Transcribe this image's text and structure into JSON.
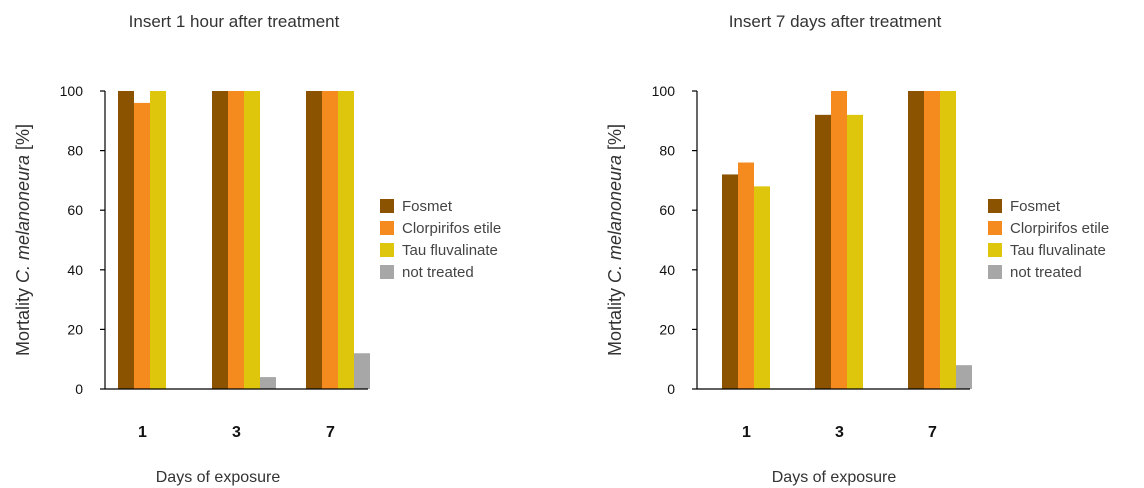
{
  "colors": {
    "Fosmet": "#8B5300",
    "Clorpirifos etile": "#F58A1F",
    "Tau fluvalinate": "#DEC60C",
    "not treated": "#A7A7A7"
  },
  "chart_data": [
    {
      "type": "bar",
      "title": "Insert 1 hour after treatment",
      "xlabel": "Days of exposure",
      "ylabel_prefix": "Mortality ",
      "ylabel_italic": "C. melanoneura",
      "ylabel_suffix": " [%]",
      "ylim": [
        0,
        100
      ],
      "yticks": [
        "0",
        "20",
        "40",
        "60",
        "80",
        "100"
      ],
      "categories": [
        "1",
        "3",
        "7"
      ],
      "legend_position": "right",
      "series": [
        {
          "name": "Fosmet",
          "values": [
            100,
            100,
            100
          ]
        },
        {
          "name": "Clorpirifos etile",
          "values": [
            96,
            100,
            100
          ]
        },
        {
          "name": "Tau fluvalinate",
          "values": [
            100,
            100,
            100
          ]
        },
        {
          "name": "not treated",
          "values": [
            0,
            4,
            12
          ]
        }
      ]
    },
    {
      "type": "bar",
      "title": "Insert 7 days after treatment",
      "xlabel": "Days of exposure",
      "ylabel_prefix": "Mortality ",
      "ylabel_italic": "C. melanoneura",
      "ylabel_suffix": " [%]",
      "ylim": [
        0,
        100
      ],
      "yticks": [
        "0",
        "20",
        "40",
        "60",
        "80",
        "100"
      ],
      "categories": [
        "1",
        "3",
        "7"
      ],
      "legend_position": "right",
      "series": [
        {
          "name": "Fosmet",
          "values": [
            72,
            92,
            100
          ]
        },
        {
          "name": "Clorpirifos etile",
          "values": [
            76,
            100,
            100
          ]
        },
        {
          "name": "Tau fluvalinate",
          "values": [
            68,
            92,
            100
          ]
        },
        {
          "name": "not treated",
          "values": [
            0,
            0,
            8
          ]
        }
      ]
    }
  ]
}
